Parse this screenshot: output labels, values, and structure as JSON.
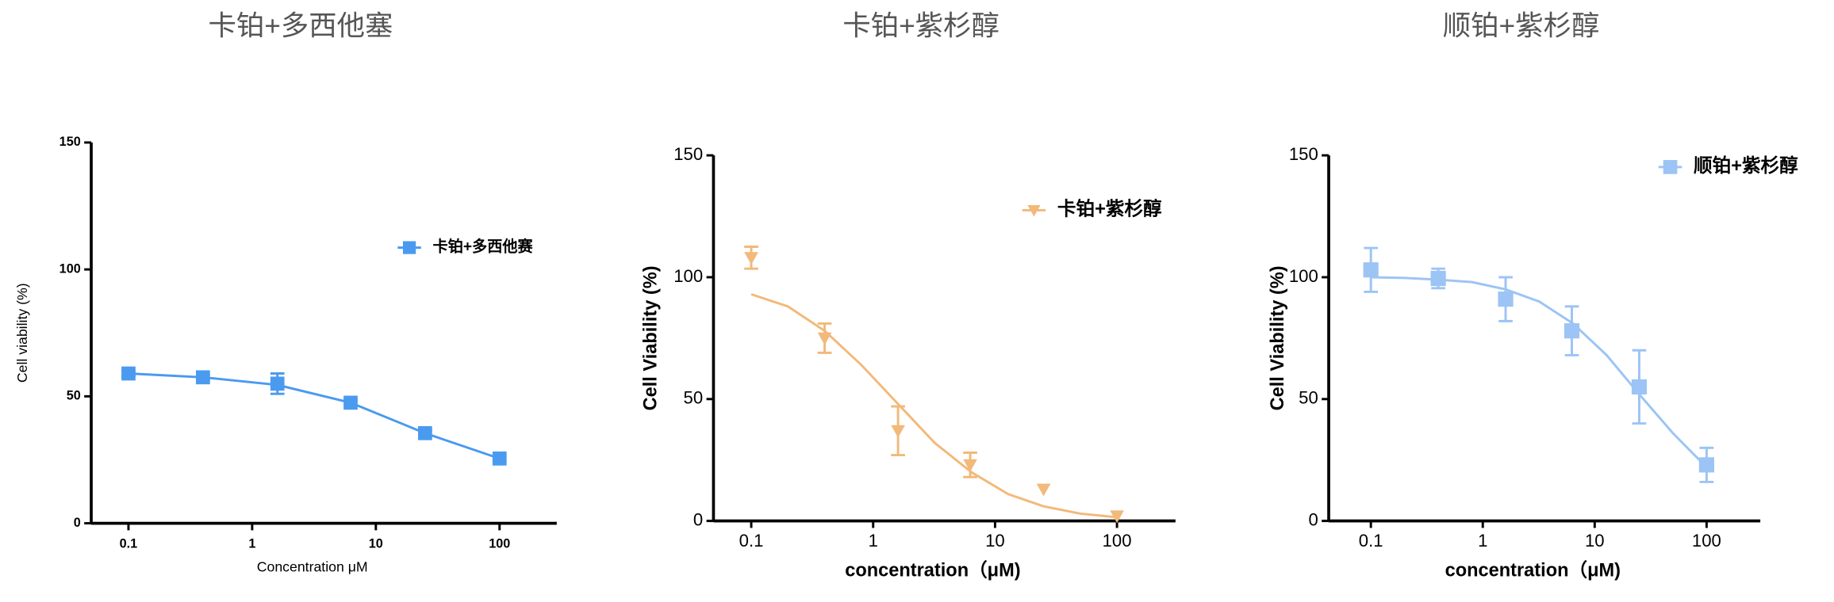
{
  "chart_data": [
    {
      "type": "line",
      "title": "卡铂+多西他塞",
      "x_label": "Concentration μM",
      "y_label": "Cell viability (%)",
      "xscale": "log",
      "xlim": [
        0.05,
        290
      ],
      "xticks": [
        0.1,
        1,
        10,
        100
      ],
      "ylim": [
        0,
        150
      ],
      "yticks": [
        0,
        50,
        100,
        150
      ],
      "legend": "upper right",
      "series": [
        {
          "name": "卡铂+多西他赛",
          "color": "#4a9af0",
          "marker": "square",
          "x": [
            0.1,
            0.4,
            1.6,
            6.25,
            25,
            100
          ],
          "values": [
            59,
            57.5,
            55,
            47.5,
            35.5,
            25.5
          ],
          "errors": [
            1,
            1,
            4,
            1,
            1,
            1
          ],
          "fit": {
            "x": [
              0.1,
              0.4,
              1.6,
              6.25,
              25,
              100
            ],
            "values": [
              59,
              57.5,
              54.5,
              47.5,
              35.5,
              25.5
            ]
          }
        }
      ]
    },
    {
      "type": "line",
      "title": "卡铂+紫杉醇",
      "x_label": "concentration（μM)",
      "y_label": "Cell Viability (%)",
      "xscale": "log",
      "xlim": [
        0.049,
        302
      ],
      "xticks": [
        0.1,
        1,
        10,
        100
      ],
      "ylim": [
        0,
        150
      ],
      "yticks": [
        0,
        50,
        100,
        150
      ],
      "legend": "upper right",
      "series": [
        {
          "name": "卡铂+紫杉醇",
          "color": "#f2b97a",
          "marker": "triangle-down",
          "x": [
            0.1,
            0.4,
            1.6,
            6.25,
            25,
            100
          ],
          "values": [
            108,
            75,
            37,
            23,
            13,
            2
          ],
          "errors": [
            4.5,
            6,
            10,
            5,
            0,
            0
          ],
          "fit": {
            "x": [
              0.1,
              0.2,
              0.4,
              0.8,
              1.6,
              3.2,
              6.4,
              12.8,
              25,
              50,
              100
            ],
            "values": [
              93,
              88,
              78,
              64,
              48,
              32,
              20,
              11,
              6,
              3,
              1.5
            ]
          }
        }
      ]
    },
    {
      "type": "line",
      "title": "顺铂+紫杉醇",
      "x_label": "concentration（μM)",
      "y_label": "Cell Viability (%)",
      "xscale": "log",
      "xlim": [
        0.042,
        302
      ],
      "xticks": [
        0.1,
        1,
        10,
        100
      ],
      "ylim": [
        0,
        150
      ],
      "yticks": [
        0,
        50,
        100,
        150
      ],
      "legend": "upper right",
      "series": [
        {
          "name": "顺铂+紫杉醇",
          "color": "#9cc4f5",
          "marker": "square",
          "x": [
            0.1,
            0.4,
            1.6,
            6.25,
            25,
            100
          ],
          "values": [
            103,
            99.5,
            91,
            78,
            55,
            23
          ],
          "errors": [
            9,
            4,
            9,
            10,
            15,
            7
          ],
          "fit": {
            "x": [
              0.1,
              0.2,
              0.4,
              0.8,
              1.6,
              3.2,
              6.4,
              12.8,
              25,
              50,
              100
            ],
            "values": [
              100,
              99.7,
              99,
              98,
              95,
              90,
              81,
              68,
              52,
              36,
              22
            ]
          }
        }
      ]
    }
  ]
}
